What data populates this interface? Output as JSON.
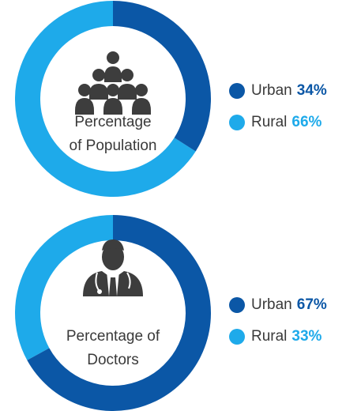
{
  "chart_data": [
    {
      "type": "donut",
      "title": [
        "Percentage",
        "of Population"
      ],
      "categories": [
        "Urban",
        "Rural"
      ],
      "values": [
        34,
        66
      ],
      "value_labels": [
        "34%",
        "66%"
      ],
      "colors": [
        "#0b57a6",
        "#1eaaea"
      ]
    },
    {
      "type": "donut",
      "title": [
        "Percentage of",
        "Doctors"
      ],
      "categories": [
        "Urban",
        "Rural"
      ],
      "values": [
        67,
        33
      ],
      "value_labels": [
        "67%",
        "33%"
      ],
      "colors": [
        "#0b57a6",
        "#1eaaea"
      ]
    }
  ]
}
